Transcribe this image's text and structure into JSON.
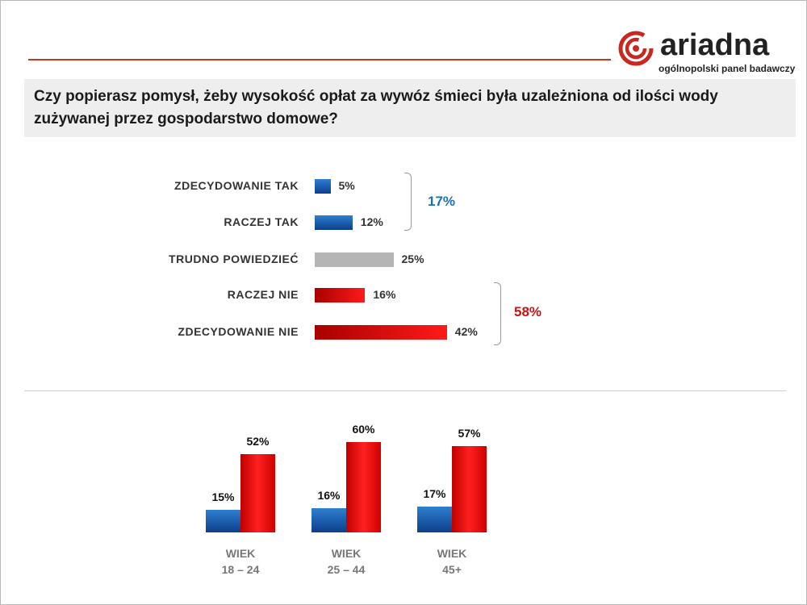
{
  "logo": {
    "word": "ariadna",
    "tagline": "ogólnopolski panel badawczy"
  },
  "question": "Czy popierasz pomysł, żeby wysokość opłat za wywóz śmieci była uzależniona od ilości wody zużywanej przez gospodarstwo domowe?",
  "colors": {
    "yes": "#1f5fb0",
    "neutral": "#b5b5b5",
    "no": "#e00000",
    "yes_total": "#1f6fb5",
    "no_total": "#cc1111"
  },
  "chart_data": [
    {
      "type": "bar",
      "orientation": "horizontal",
      "categories": [
        "ZDECYDOWANIE  TAK",
        "RACZEJ TAK",
        "TRUDNO POWIEDZIEĆ",
        "RACZEJ NIE",
        "ZDECYDOWANIE  NIE"
      ],
      "values": [
        5,
        12,
        25,
        16,
        42
      ],
      "value_labels": [
        "5%",
        "12%",
        "25%",
        "16%",
        "42%"
      ],
      "groups": [
        {
          "label": "17%",
          "value": 17,
          "members": [
            0,
            1
          ]
        },
        {
          "label": "58%",
          "value": 58,
          "members": [
            3,
            4
          ]
        }
      ]
    },
    {
      "type": "bar",
      "orientation": "vertical",
      "categories": [
        {
          "line1": "WIEK",
          "line2": "18 – 24"
        },
        {
          "line1": "WIEK",
          "line2": "25 – 44"
        },
        {
          "line1": "WIEK",
          "line2": "45+"
        }
      ],
      "series": [
        {
          "values": [
            15,
            16,
            17
          ],
          "labels": [
            "15%",
            "16%",
            "17%"
          ]
        },
        {
          "values": [
            52,
            60,
            57
          ],
          "labels": [
            "52%",
            "60%",
            "57%"
          ]
        }
      ]
    }
  ]
}
